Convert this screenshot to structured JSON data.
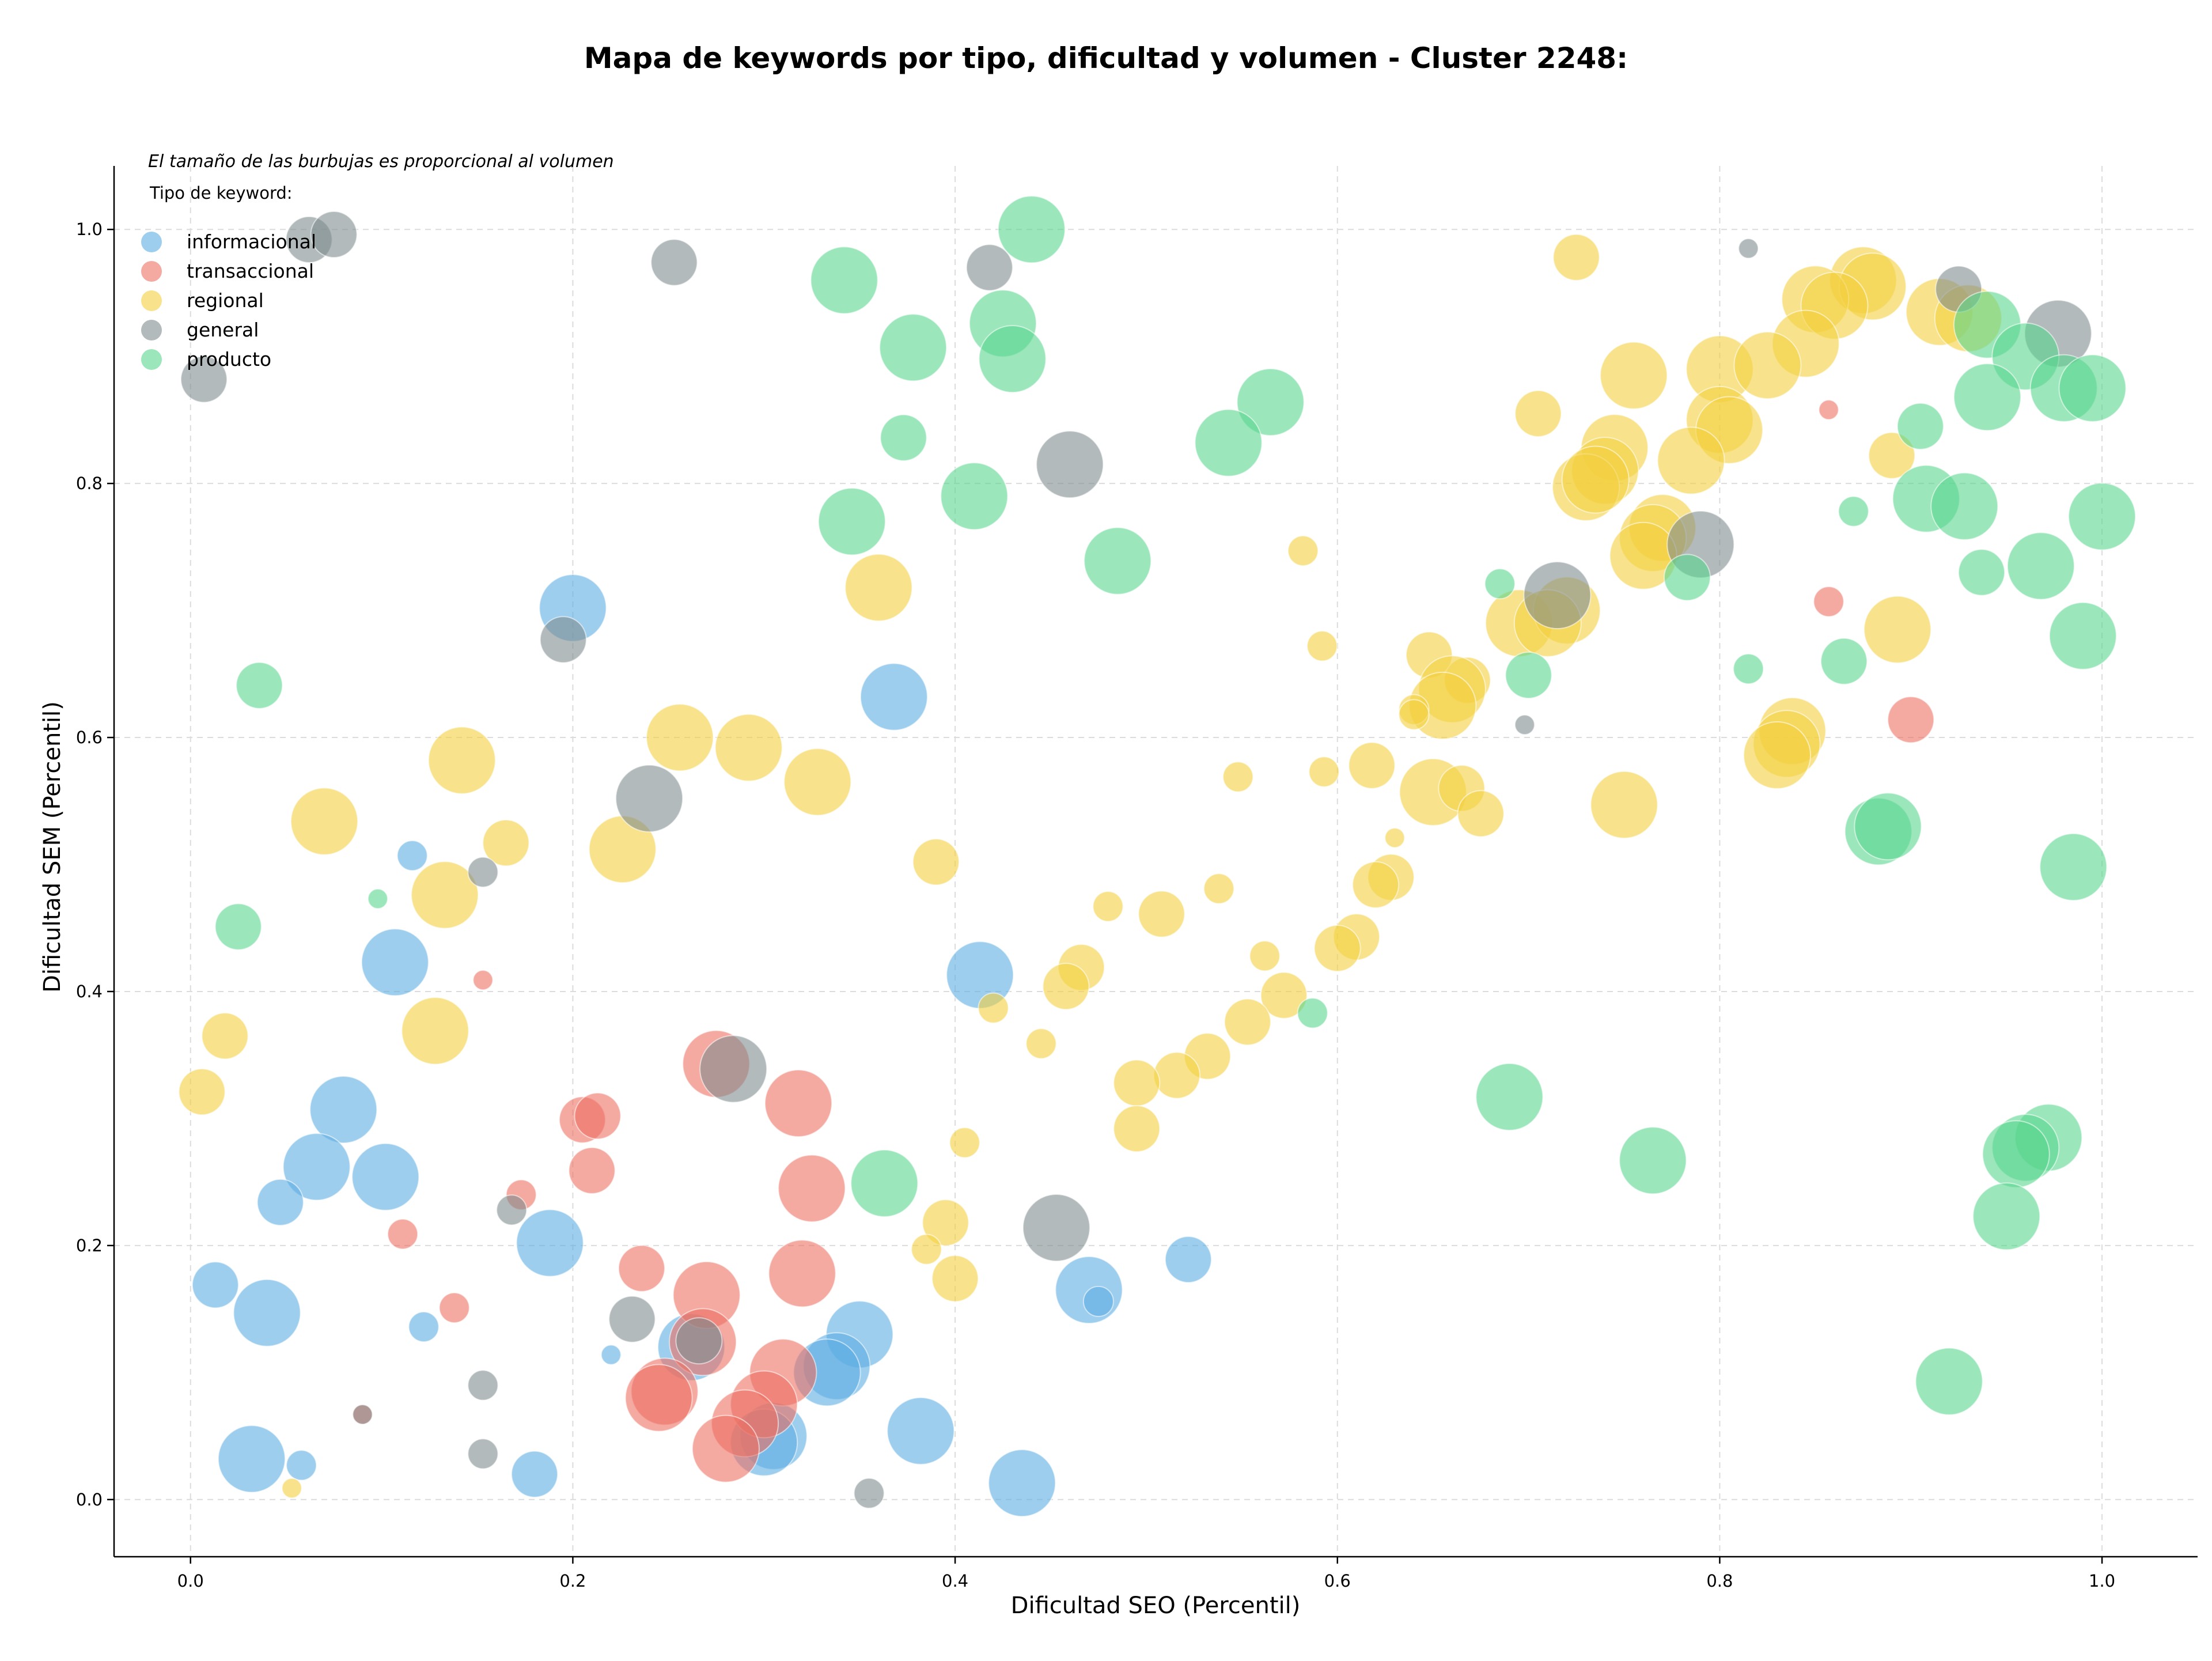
{
  "chart_data": {
    "type": "scatter",
    "title": "Mapa de keywords por tipo, dificultad y volumen - Cluster 2248:",
    "xlabel": "Dificultad SEO (Percentil)",
    "ylabel": "Dificultad SEM (Percentil)",
    "xlim": [
      -0.04,
      1.05
    ],
    "ylim": [
      -0.045,
      1.05
    ],
    "xticks": [
      0.0,
      0.2,
      0.4,
      0.6,
      0.8,
      1.0
    ],
    "yticks": [
      0.0,
      0.2,
      0.4,
      0.6,
      0.8,
      1.0
    ],
    "xtick_labels": [
      "0.0",
      "0.2",
      "0.4",
      "0.6",
      "0.8",
      "1.0"
    ],
    "ytick_labels": [
      "0.0",
      "0.2",
      "0.4",
      "0.6",
      "0.8",
      "1.0"
    ],
    "grid": true,
    "note": "El tamaño de las burbujas es proporcional al volumen",
    "legend_title": "Tipo de keyword:",
    "legend_position": "top-left",
    "point_size_meaning": "volumen (relative)",
    "series": [
      {
        "name": "informacional",
        "color": "#5DADE2",
        "points": [
          [
            0.2,
            0.702,
            3
          ],
          [
            0.368,
            0.632,
            3
          ],
          [
            0.116,
            0.507,
            1
          ],
          [
            0.107,
            0.423,
            3
          ],
          [
            0.413,
            0.413,
            3
          ],
          [
            0.08,
            0.307,
            3
          ],
          [
            0.066,
            0.262,
            3
          ],
          [
            0.102,
            0.254,
            3
          ],
          [
            0.047,
            0.234,
            2
          ],
          [
            0.188,
            0.202,
            3
          ],
          [
            0.47,
            0.165,
            3
          ],
          [
            0.475,
            0.156,
            1
          ],
          [
            0.522,
            0.189,
            2
          ],
          [
            0.013,
            0.169,
            2
          ],
          [
            0.04,
            0.147,
            3
          ],
          [
            0.122,
            0.136,
            1
          ],
          [
            0.22,
            0.114,
            0
          ],
          [
            0.262,
            0.12,
            3
          ],
          [
            0.35,
            0.13,
            3
          ],
          [
            0.338,
            0.105,
            3
          ],
          [
            0.333,
            0.1,
            3
          ],
          [
            0.305,
            0.05,
            3
          ],
          [
            0.3,
            0.045,
            3
          ],
          [
            0.382,
            0.054,
            3
          ],
          [
            0.435,
            0.013,
            3
          ],
          [
            0.032,
            0.032,
            3
          ],
          [
            0.058,
            0.027,
            1
          ],
          [
            0.18,
            0.02,
            2
          ]
        ]
      },
      {
        "name": "transaccional",
        "color": "#EC7063",
        "points": [
          [
            0.857,
            0.858,
            0
          ],
          [
            0.857,
            0.707,
            1
          ],
          [
            0.9,
            0.614,
            2
          ],
          [
            0.153,
            0.409,
            0
          ],
          [
            0.275,
            0.343,
            3
          ],
          [
            0.318,
            0.312,
            3
          ],
          [
            0.205,
            0.299,
            2
          ],
          [
            0.213,
            0.302,
            2
          ],
          [
            0.21,
            0.259,
            2
          ],
          [
            0.325,
            0.245,
            3
          ],
          [
            0.173,
            0.24,
            1
          ],
          [
            0.111,
            0.209,
            1
          ],
          [
            0.236,
            0.182,
            2
          ],
          [
            0.32,
            0.178,
            3
          ],
          [
            0.27,
            0.161,
            3
          ],
          [
            0.138,
            0.151,
            1
          ],
          [
            0.268,
            0.124,
            3
          ],
          [
            0.31,
            0.1,
            3
          ],
          [
            0.248,
            0.085,
            3
          ],
          [
            0.245,
            0.08,
            3
          ],
          [
            0.3,
            0.075,
            3
          ],
          [
            0.29,
            0.06,
            3
          ],
          [
            0.28,
            0.04,
            3
          ],
          [
            0.09,
            0.067,
            0
          ]
        ]
      },
      {
        "name": "regional",
        "color": "#F4D03F",
        "points": [
          [
            0.725,
            0.978,
            2
          ],
          [
            0.875,
            0.96,
            3
          ],
          [
            0.88,
            0.955,
            3
          ],
          [
            0.85,
            0.945,
            3
          ],
          [
            0.86,
            0.94,
            3
          ],
          [
            0.915,
            0.935,
            3
          ],
          [
            0.93,
            0.93,
            3
          ],
          [
            0.845,
            0.91,
            3
          ],
          [
            0.8,
            0.89,
            3
          ],
          [
            0.825,
            0.893,
            3
          ],
          [
            0.755,
            0.885,
            3
          ],
          [
            0.705,
            0.855,
            2
          ],
          [
            0.8,
            0.85,
            3
          ],
          [
            0.805,
            0.842,
            3
          ],
          [
            0.745,
            0.828,
            3
          ],
          [
            0.74,
            0.81,
            3
          ],
          [
            0.785,
            0.818,
            3
          ],
          [
            0.73,
            0.797,
            3
          ],
          [
            0.735,
            0.803,
            3
          ],
          [
            0.89,
            0.822,
            2
          ],
          [
            0.77,
            0.765,
            3
          ],
          [
            0.765,
            0.757,
            3
          ],
          [
            0.76,
            0.743,
            3
          ],
          [
            0.582,
            0.747,
            1
          ],
          [
            0.36,
            0.718,
            3
          ],
          [
            0.695,
            0.69,
            3
          ],
          [
            0.72,
            0.7,
            3
          ],
          [
            0.71,
            0.69,
            3
          ],
          [
            0.893,
            0.685,
            3
          ],
          [
            0.592,
            0.672,
            1
          ],
          [
            0.648,
            0.665,
            2
          ],
          [
            0.668,
            0.645,
            2
          ],
          [
            0.66,
            0.638,
            3
          ],
          [
            0.655,
            0.625,
            3
          ],
          [
            0.64,
            0.622,
            1
          ],
          [
            0.64,
            0.618,
            1
          ],
          [
            0.838,
            0.605,
            3
          ],
          [
            0.835,
            0.595,
            3
          ],
          [
            0.83,
            0.586,
            3
          ],
          [
            0.256,
            0.6,
            3
          ],
          [
            0.292,
            0.592,
            3
          ],
          [
            0.142,
            0.582,
            3
          ],
          [
            0.328,
            0.565,
            3
          ],
          [
            0.618,
            0.578,
            2
          ],
          [
            0.548,
            0.569,
            1
          ],
          [
            0.593,
            0.573,
            1
          ],
          [
            0.07,
            0.534,
            3
          ],
          [
            0.65,
            0.557,
            3
          ],
          [
            0.665,
            0.56,
            2
          ],
          [
            0.75,
            0.547,
            3
          ],
          [
            0.675,
            0.54,
            2
          ],
          [
            0.165,
            0.517,
            2
          ],
          [
            0.226,
            0.512,
            3
          ],
          [
            0.63,
            0.521,
            0
          ],
          [
            0.39,
            0.502,
            2
          ],
          [
            0.628,
            0.49,
            2
          ],
          [
            0.62,
            0.484,
            2
          ],
          [
            0.538,
            0.481,
            1
          ],
          [
            0.133,
            0.476,
            3
          ],
          [
            0.48,
            0.467,
            1
          ],
          [
            0.508,
            0.461,
            2
          ],
          [
            0.61,
            0.443,
            2
          ],
          [
            0.6,
            0.434,
            2
          ],
          [
            0.562,
            0.428,
            1
          ],
          [
            0.466,
            0.419,
            2
          ],
          [
            0.458,
            0.404,
            2
          ],
          [
            0.572,
            0.397,
            2
          ],
          [
            0.42,
            0.387,
            1
          ],
          [
            0.553,
            0.376,
            2
          ],
          [
            0.128,
            0.369,
            3
          ],
          [
            0.018,
            0.365,
            2
          ],
          [
            0.445,
            0.359,
            1
          ],
          [
            0.532,
            0.349,
            2
          ],
          [
            0.516,
            0.334,
            2
          ],
          [
            0.495,
            0.328,
            2
          ],
          [
            0.006,
            0.321,
            2
          ],
          [
            0.495,
            0.292,
            2
          ],
          [
            0.405,
            0.281,
            1
          ],
          [
            0.395,
            0.218,
            2
          ],
          [
            0.385,
            0.197,
            1
          ],
          [
            0.4,
            0.174,
            2
          ],
          [
            0.053,
            0.009,
            0
          ]
        ]
      },
      {
        "name": "general",
        "color": "#7F8C8D",
        "points": [
          [
            0.062,
            0.992,
            2
          ],
          [
            0.075,
            0.996,
            2
          ],
          [
            0.253,
            0.974,
            2
          ],
          [
            0.418,
            0.97,
            2
          ],
          [
            0.815,
            0.985,
            0
          ],
          [
            0.007,
            0.882,
            2
          ],
          [
            0.925,
            0.953,
            2
          ],
          [
            0.977,
            0.918,
            3
          ],
          [
            0.46,
            0.815,
            3
          ],
          [
            0.79,
            0.752,
            3
          ],
          [
            0.715,
            0.712,
            3
          ],
          [
            0.195,
            0.677,
            2
          ],
          [
            0.698,
            0.61,
            0
          ],
          [
            0.24,
            0.552,
            3
          ],
          [
            0.153,
            0.494,
            1
          ],
          [
            0.284,
            0.339,
            3
          ],
          [
            0.168,
            0.228,
            1
          ],
          [
            0.453,
            0.214,
            3
          ],
          [
            0.231,
            0.142,
            2
          ],
          [
            0.266,
            0.125,
            2
          ],
          [
            0.153,
            0.09,
            1
          ],
          [
            0.153,
            0.036,
            1
          ],
          [
            0.355,
            0.005,
            1
          ],
          [
            0.09,
            0.067,
            0
          ]
        ]
      },
      {
        "name": "producto",
        "color": "#58D68D",
        "points": [
          [
            0.44,
            1.0,
            3
          ],
          [
            0.342,
            0.96,
            3
          ],
          [
            0.378,
            0.907,
            3
          ],
          [
            0.425,
            0.926,
            3
          ],
          [
            0.43,
            0.898,
            3
          ],
          [
            0.565,
            0.864,
            3
          ],
          [
            0.373,
            0.836,
            2
          ],
          [
            0.543,
            0.832,
            3
          ],
          [
            0.41,
            0.79,
            3
          ],
          [
            0.346,
            0.77,
            3
          ],
          [
            0.485,
            0.739,
            3
          ],
          [
            0.94,
            0.925,
            3
          ],
          [
            0.96,
            0.9,
            3
          ],
          [
            0.98,
            0.875,
            3
          ],
          [
            0.995,
            0.875,
            3
          ],
          [
            0.94,
            0.868,
            3
          ],
          [
            0.905,
            0.845,
            2
          ],
          [
            0.908,
            0.788,
            3
          ],
          [
            0.928,
            0.782,
            3
          ],
          [
            0.87,
            0.778,
            1
          ],
          [
            1.0,
            0.774,
            3
          ],
          [
            0.968,
            0.735,
            3
          ],
          [
            0.937,
            0.73,
            2
          ],
          [
            0.783,
            0.726,
            2
          ],
          [
            0.685,
            0.721,
            1
          ],
          [
            0.99,
            0.68,
            3
          ],
          [
            0.865,
            0.66,
            2
          ],
          [
            0.815,
            0.654,
            1
          ],
          [
            0.7,
            0.649,
            2
          ],
          [
            0.036,
            0.641,
            2
          ],
          [
            0.883,
            0.526,
            3
          ],
          [
            0.888,
            0.53,
            3
          ],
          [
            0.985,
            0.498,
            3
          ],
          [
            0.098,
            0.473,
            0
          ],
          [
            0.025,
            0.451,
            2
          ],
          [
            0.587,
            0.383,
            1
          ],
          [
            0.69,
            0.317,
            3
          ],
          [
            0.972,
            0.285,
            3
          ],
          [
            0.96,
            0.277,
            3
          ],
          [
            0.955,
            0.272,
            3
          ],
          [
            0.765,
            0.267,
            3
          ],
          [
            0.363,
            0.249,
            3
          ],
          [
            0.95,
            0.223,
            3
          ],
          [
            0.92,
            0.093,
            3
          ]
        ]
      }
    ]
  }
}
